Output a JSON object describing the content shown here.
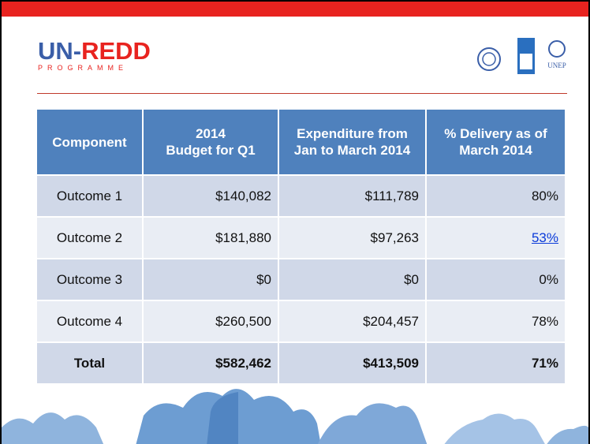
{
  "header": {
    "title": "UN-REDD",
    "subtitle": "PROGRAMME",
    "partner_label": "UNEP"
  },
  "table": {
    "columns": [
      [
        "Component"
      ],
      [
        "2014",
        "Budget for Q1"
      ],
      [
        "Expenditure  from",
        "Jan to March 2014"
      ],
      [
        "% Delivery as of",
        "March 2014"
      ]
    ],
    "rows": [
      [
        "Outcome 1",
        "$140,082",
        "$111,789",
        "80%"
      ],
      [
        "Outcome 2",
        "$181,880",
        "$97,263",
        "53%"
      ],
      [
        "Outcome 3",
        "$0",
        "$0",
        "0%"
      ],
      [
        "Outcome 4",
        "$260,500",
        "$204,457",
        "78%"
      ],
      [
        "Total",
        "$582,462",
        "$413,509",
        "71%"
      ]
    ]
  }
}
